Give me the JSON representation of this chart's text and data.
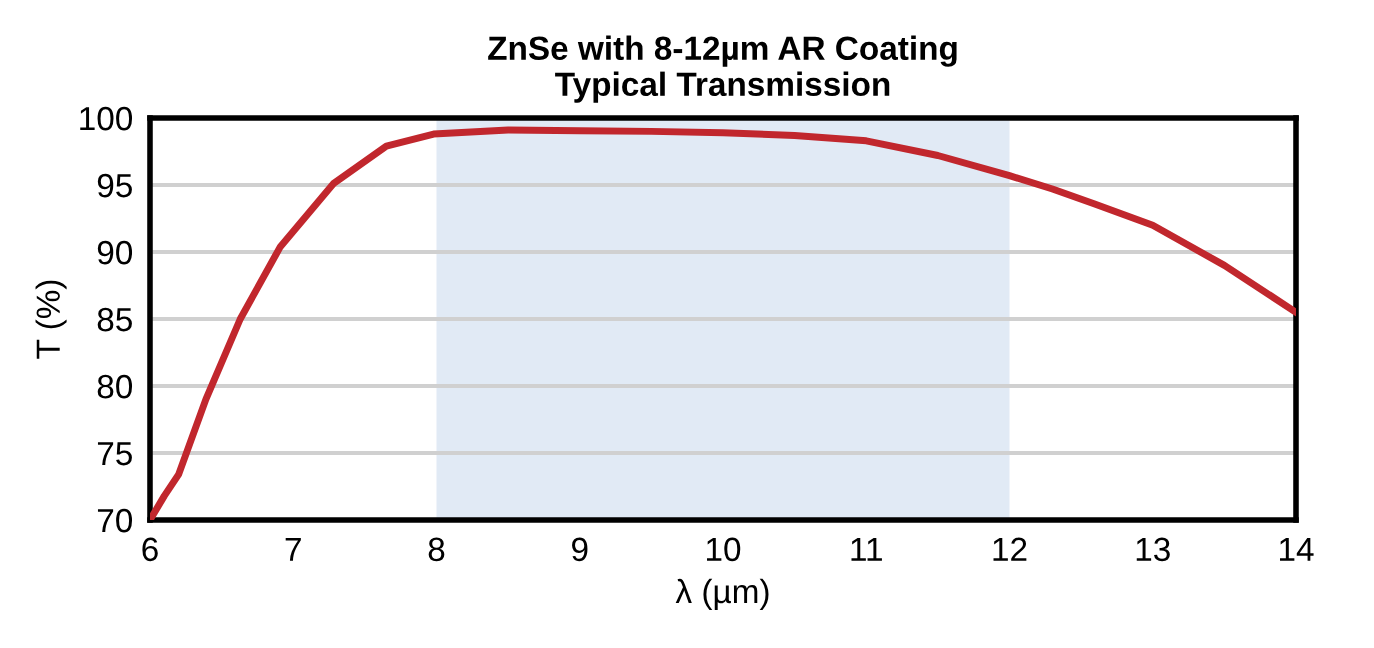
{
  "chart_data": {
    "type": "line",
    "title": "ZnSe with 8-12µm AR Coating\nTypical Transmission",
    "xlabel": "λ (µm)",
    "ylabel": "T (%)",
    "series": [
      {
        "color": "#c1272d",
        "x": [
          6.0,
          6.1,
          6.2,
          6.39,
          6.63,
          6.91,
          7.28,
          7.65,
          7.98,
          8.5,
          9.0,
          9.5,
          10.0,
          10.5,
          11.0,
          11.5,
          12.0,
          12.3,
          12.59,
          13.0,
          13.5,
          14.0
        ],
        "values": [
          70,
          71.8,
          73.4,
          79,
          85,
          90.4,
          95.1,
          97.9,
          98.8,
          99.1,
          99.05,
          99,
          98.9,
          98.7,
          98.3,
          97.2,
          95.7,
          94.7,
          93.6,
          92,
          89,
          85.5
        ]
      }
    ],
    "xlim": [
      6,
      14
    ],
    "ylim": [
      70,
      100
    ],
    "xticks": [
      6,
      7,
      8,
      9,
      10,
      11,
      12,
      13,
      14
    ],
    "yticks": [
      70,
      75,
      80,
      85,
      90,
      95,
      100
    ],
    "grid": "y",
    "bands": [
      {
        "axis": "x",
        "from": 8,
        "to": 12,
        "color": "#e1eaf5"
      }
    ],
    "marker": "none",
    "line_style": "solid",
    "legend": false
  }
}
